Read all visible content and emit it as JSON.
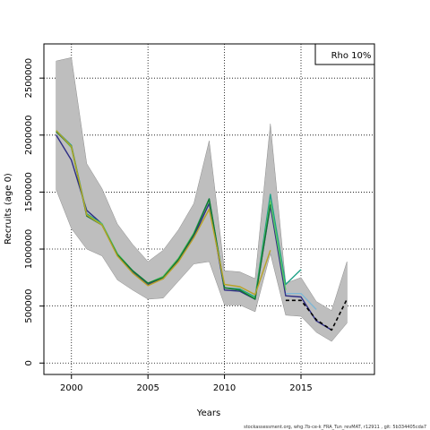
{
  "chart_data": {
    "type": "line",
    "title": "",
    "xlabel": "Years",
    "ylabel": "Recruits (age 0)",
    "xlim": [
      1998.2,
      2019.8
    ],
    "ylim": [
      -100000,
      2800000
    ],
    "x_ticks": [
      2000,
      2005,
      2010,
      2015
    ],
    "y_ticks": [
      0,
      500000,
      1000000,
      1500000,
      2000000,
      2500000
    ],
    "grid": "dotted at major ticks",
    "legend": {
      "position": "top-right",
      "label": "Rho 10%"
    },
    "band": {
      "x": [
        1999,
        2000,
        2001,
        2002,
        2003,
        2004,
        2005,
        2006,
        2007,
        2008,
        2009,
        2010,
        2011,
        2012,
        2013,
        2014,
        2015,
        2016,
        2017,
        2018
      ],
      "upper": [
        2650000,
        2680000,
        1750000,
        1530000,
        1220000,
        1040000,
        890000,
        990000,
        1170000,
        1400000,
        1950000,
        810000,
        800000,
        740000,
        2100000,
        700000,
        750000,
        540000,
        460000,
        890000
      ],
      "lower": [
        1520000,
        1180000,
        1000000,
        940000,
        730000,
        640000,
        560000,
        570000,
        720000,
        870000,
        890000,
        510000,
        510000,
        450000,
        960000,
        420000,
        410000,
        270000,
        190000,
        350000
      ]
    },
    "series": [
      {
        "color": "#2c2c84",
        "x": [
          1999,
          2000,
          2001,
          2002,
          2003,
          2004,
          2005,
          2006,
          2007,
          2008,
          2009,
          2010,
          2011,
          2012,
          2013,
          2014,
          2015,
          2016,
          2017
        ],
        "values": [
          2000000,
          1780000,
          1340000,
          1220000,
          950000,
          800000,
          690000,
          740000,
          900000,
          1110000,
          1400000,
          640000,
          630000,
          560000,
          1380000,
          590000,
          580000,
          370000,
          290000
        ]
      },
      {
        "color": "#1fa187",
        "x": [
          1999,
          2000,
          2001,
          2002,
          2003,
          2004,
          2005,
          2006,
          2007,
          2008,
          2009,
          2010,
          2011,
          2012,
          2013,
          2014,
          2015
        ],
        "values": [
          2040000,
          1910000,
          1310000,
          1220000,
          960000,
          810000,
          700000,
          760000,
          920000,
          1140000,
          1440000,
          660000,
          650000,
          580000,
          1480000,
          690000,
          820000
        ]
      },
      {
        "color": "#5ec962",
        "x": [
          1999,
          2000,
          2001,
          2002,
          2003,
          2004,
          2005,
          2006,
          2007,
          2008,
          2009,
          2010,
          2011,
          2012,
          2013,
          2014
        ],
        "values": [
          2040000,
          1890000,
          1300000,
          1220000,
          960000,
          810000,
          700000,
          760000,
          920000,
          1140000,
          1430000,
          660000,
          640000,
          570000,
          1420000,
          640000
        ]
      },
      {
        "color": "#117733",
        "x": [
          1999,
          2000,
          2001,
          2002,
          2003,
          2004,
          2005,
          2006,
          2007,
          2008,
          2009,
          2010,
          2011,
          2012,
          2013
        ],
        "values": [
          2030000,
          1900000,
          1290000,
          1210000,
          950000,
          810000,
          700000,
          750000,
          910000,
          1130000,
          1440000,
          660000,
          640000,
          560000,
          1390000
        ]
      },
      {
        "color": "#b8a326",
        "x": [
          1999,
          2000,
          2001,
          2002,
          2003,
          2004,
          2005,
          2006,
          2007,
          2008,
          2009,
          2010,
          2011,
          2012,
          2013
        ],
        "values": [
          2040000,
          1900000,
          1300000,
          1210000,
          940000,
          790000,
          680000,
          740000,
          890000,
          1100000,
          1350000,
          690000,
          670000,
          600000,
          990000
        ]
      },
      {
        "color": "#7fb8d6",
        "x": [
          2014,
          2015,
          2016
        ],
        "values": [
          610000,
          610000,
          470000
        ]
      },
      {
        "color": "#000000",
        "dashed": true,
        "x": [
          2014,
          2015,
          2016,
          2017,
          2018
        ],
        "values": [
          550000,
          550000,
          380000,
          290000,
          560000
        ]
      }
    ]
  },
  "footer": "stockassessment.org, whg.7b-ce-k_FRA_Tun_revMAT, r12911 , git: 5b334405cda7"
}
